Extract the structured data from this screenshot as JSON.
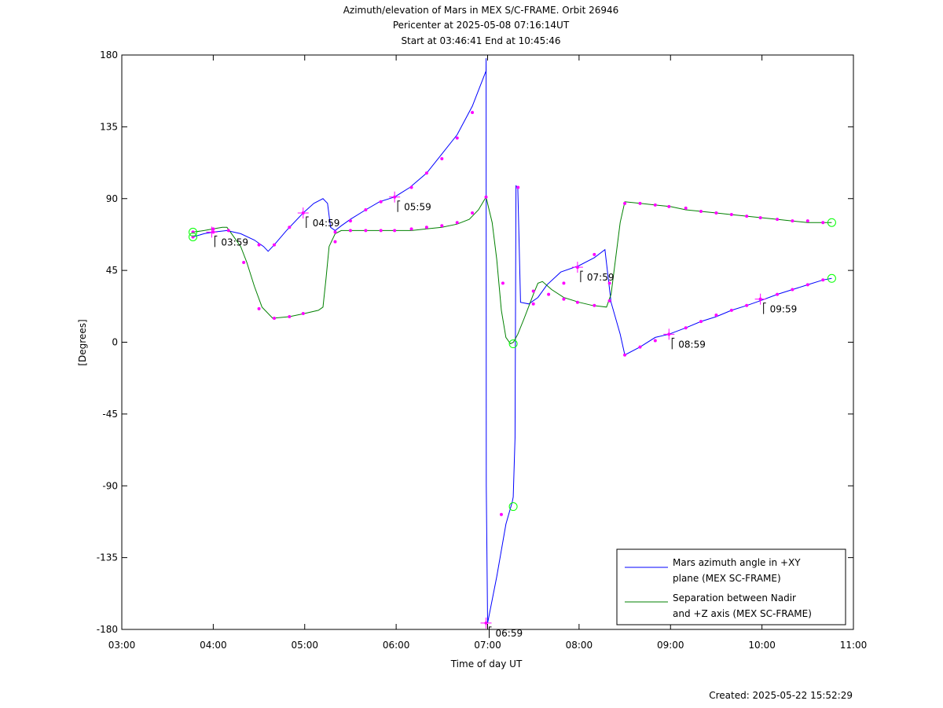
{
  "chart_data": {
    "type": "line",
    "title_lines": [
      "Azimuth/elevation of Mars in MEX S/C-FRAME.  Orbit 26946",
      "Pericenter at 2025-05-08 07:16:14UT",
      "Start at 03:46:41 End at 10:45:46"
    ],
    "xlabel": "Time of day UT",
    "ylabel": "[Degrees]",
    "xlim": [
      3.0,
      11.0
    ],
    "ylim": [
      -180,
      180
    ],
    "xticks": [
      {
        "v": 3,
        "label": "03:00"
      },
      {
        "v": 4,
        "label": "04:00"
      },
      {
        "v": 5,
        "label": "05:00"
      },
      {
        "v": 6,
        "label": "06:00"
      },
      {
        "v": 7,
        "label": "07:00"
      },
      {
        "v": 8,
        "label": "08:00"
      },
      {
        "v": 9,
        "label": "09:00"
      },
      {
        "v": 10,
        "label": "10:00"
      },
      {
        "v": 11,
        "label": "11:00"
      }
    ],
    "yticks": [
      {
        "v": 180,
        "label": "180"
      },
      {
        "v": 135,
        "label": "135"
      },
      {
        "v": 90,
        "label": "90"
      },
      {
        "v": 45,
        "label": "45"
      },
      {
        "v": 0,
        "label": "0"
      },
      {
        "v": -45,
        "label": "-45"
      },
      {
        "v": -90,
        "label": "-90"
      },
      {
        "v": -135,
        "label": "-135"
      },
      {
        "v": -180,
        "label": "-180"
      }
    ],
    "grid": false,
    "legend_position": "bottom-right",
    "series": [
      {
        "name_lines": [
          "Mars azimuth angle in +XY",
          "plane (MEX SC-FRAME)"
        ],
        "color": "#0000ff",
        "x": [
          3.778,
          3.9,
          4.0,
          4.15,
          4.3,
          4.45,
          4.55,
          4.6,
          4.667,
          4.8,
          4.983,
          5.1,
          5.2,
          5.25,
          5.283,
          5.333,
          5.4,
          5.5,
          5.667,
          5.817,
          5.983,
          6.15,
          6.333,
          6.5,
          6.667,
          6.833,
          6.983,
          6.9833,
          6.985,
          7.0,
          7.1,
          7.2,
          7.27,
          7.28,
          7.3,
          7.31,
          7.33,
          7.36,
          7.45,
          7.55,
          7.65,
          7.8,
          8.0,
          8.167,
          8.283,
          8.35,
          8.45,
          8.5,
          8.667,
          8.833,
          8.983,
          9.167,
          9.333,
          9.5,
          9.667,
          9.833,
          9.983,
          10.167,
          10.333,
          10.5,
          10.667,
          10.763
        ],
        "y": [
          66,
          68,
          69,
          70,
          68,
          64,
          60,
          57,
          61,
          70,
          81,
          87,
          90,
          87,
          72,
          70,
          73,
          77,
          83,
          88,
          91,
          97,
          106,
          118,
          130,
          148,
          170,
          178,
          -90,
          -176,
          -147,
          -114,
          -100,
          -97,
          -60,
          98,
          97,
          25,
          24,
          28,
          36,
          44,
          48,
          53,
          58,
          25,
          5,
          -8,
          -3,
          3,
          5,
          9,
          13,
          16,
          20,
          23,
          26,
          30,
          33,
          36,
          39,
          40
        ]
      },
      {
        "name_lines": [
          "Separation between Nadir",
          "and +Z axis (MEX SC-FRAME)"
        ],
        "color": "#008000",
        "x": [
          3.778,
          3.9,
          4.0,
          4.1,
          4.15,
          4.2,
          4.3,
          4.367,
          4.45,
          4.533,
          4.65,
          4.833,
          5.0,
          5.15,
          5.2,
          5.233,
          5.267,
          5.333,
          5.4,
          5.5,
          5.667,
          5.833,
          6.0,
          6.167,
          6.333,
          6.5,
          6.667,
          6.8,
          6.9,
          6.983,
          7.05,
          7.1,
          7.15,
          7.2,
          7.25,
          7.283,
          7.33,
          7.4,
          7.5,
          7.55,
          7.6,
          7.7,
          7.833,
          8.0,
          8.15,
          8.3,
          8.35,
          8.45,
          8.5,
          8.667,
          8.833,
          9.0,
          9.167,
          9.333,
          9.5,
          9.667,
          9.833,
          10.0,
          10.167,
          10.333,
          10.5,
          10.667,
          10.763
        ],
        "y": [
          69,
          70,
          71,
          72,
          72,
          68,
          60,
          50,
          35,
          22,
          15,
          16,
          18,
          20,
          22,
          40,
          60,
          68,
          70,
          70,
          70,
          70,
          70,
          70,
          71,
          72,
          74,
          77,
          83,
          91,
          75,
          52,
          20,
          3,
          -1,
          0,
          5,
          15,
          30,
          37,
          38,
          33,
          28,
          25,
          23,
          22,
          30,
          75,
          88,
          87,
          86,
          85,
          83,
          82,
          81,
          80,
          79,
          78,
          77,
          76,
          75,
          75,
          75
        ]
      }
    ],
    "markers": [
      {
        "x": 3.778,
        "y": 66
      },
      {
        "x": 3.778,
        "y": 69
      },
      {
        "x": 4.0,
        "y": 69
      },
      {
        "x": 4.0,
        "y": 71
      },
      {
        "x": 4.167,
        "y": 70
      },
      {
        "x": 4.333,
        "y": 50
      },
      {
        "x": 4.5,
        "y": 21
      },
      {
        "x": 4.667,
        "y": 15
      },
      {
        "x": 4.5,
        "y": 61
      },
      {
        "x": 4.667,
        "y": 61
      },
      {
        "x": 4.833,
        "y": 16
      },
      {
        "x": 4.833,
        "y": 72
      },
      {
        "x": 4.983,
        "y": 81
      },
      {
        "x": 4.983,
        "y": 18
      },
      {
        "x": 5.333,
        "y": 63
      },
      {
        "x": 5.333,
        "y": 69
      },
      {
        "x": 5.5,
        "y": 76
      },
      {
        "x": 5.5,
        "y": 70
      },
      {
        "x": 5.667,
        "y": 70
      },
      {
        "x": 5.667,
        "y": 83
      },
      {
        "x": 5.833,
        "y": 88
      },
      {
        "x": 5.833,
        "y": 70
      },
      {
        "x": 5.983,
        "y": 91
      },
      {
        "x": 5.983,
        "y": 70
      },
      {
        "x": 6.167,
        "y": 97
      },
      {
        "x": 6.167,
        "y": 71
      },
      {
        "x": 6.333,
        "y": 106
      },
      {
        "x": 6.333,
        "y": 72
      },
      {
        "x": 6.5,
        "y": 115
      },
      {
        "x": 6.5,
        "y": 73
      },
      {
        "x": 6.667,
        "y": 128
      },
      {
        "x": 6.667,
        "y": 75
      },
      {
        "x": 6.833,
        "y": 144
      },
      {
        "x": 6.833,
        "y": 81
      },
      {
        "x": 6.983,
        "y": 91
      },
      {
        "x": 6.983,
        "y": -176
      },
      {
        "x": 7.15,
        "y": -108
      },
      {
        "x": 7.167,
        "y": 37
      },
      {
        "x": 7.333,
        "y": 97
      },
      {
        "x": 7.5,
        "y": 24
      },
      {
        "x": 7.5,
        "y": 32
      },
      {
        "x": 7.667,
        "y": 30
      },
      {
        "x": 7.833,
        "y": 37
      },
      {
        "x": 7.833,
        "y": 27
      },
      {
        "x": 7.983,
        "y": 47
      },
      {
        "x": 7.983,
        "y": 25
      },
      {
        "x": 8.167,
        "y": 55
      },
      {
        "x": 8.167,
        "y": 23
      },
      {
        "x": 8.333,
        "y": 26
      },
      {
        "x": 8.333,
        "y": 37
      },
      {
        "x": 8.5,
        "y": -8
      },
      {
        "x": 8.5,
        "y": 87
      },
      {
        "x": 8.667,
        "y": -3
      },
      {
        "x": 8.667,
        "y": 87
      },
      {
        "x": 8.833,
        "y": 1
      },
      {
        "x": 8.833,
        "y": 86
      },
      {
        "x": 8.983,
        "y": 5
      },
      {
        "x": 8.983,
        "y": 85
      },
      {
        "x": 9.167,
        "y": 9
      },
      {
        "x": 9.167,
        "y": 84
      },
      {
        "x": 9.333,
        "y": 13
      },
      {
        "x": 9.333,
        "y": 82
      },
      {
        "x": 9.5,
        "y": 17
      },
      {
        "x": 9.5,
        "y": 81
      },
      {
        "x": 9.667,
        "y": 20
      },
      {
        "x": 9.667,
        "y": 80
      },
      {
        "x": 9.833,
        "y": 23
      },
      {
        "x": 9.833,
        "y": 79
      },
      {
        "x": 9.983,
        "y": 27
      },
      {
        "x": 9.983,
        "y": 78
      },
      {
        "x": 10.167,
        "y": 30
      },
      {
        "x": 10.167,
        "y": 77
      },
      {
        "x": 10.333,
        "y": 33
      },
      {
        "x": 10.333,
        "y": 76
      },
      {
        "x": 10.5,
        "y": 36
      },
      {
        "x": 10.5,
        "y": 76
      },
      {
        "x": 10.667,
        "y": 39
      },
      {
        "x": 10.667,
        "y": 75
      }
    ],
    "circles": [
      {
        "x": 3.778,
        "y": 66
      },
      {
        "x": 3.778,
        "y": 69
      },
      {
        "x": 7.28,
        "y": -103
      },
      {
        "x": 7.28,
        "y": -1
      },
      {
        "x": 10.763,
        "y": 40
      },
      {
        "x": 10.763,
        "y": 75
      }
    ],
    "time_labels": [
      {
        "x": 3.983,
        "y": 69,
        "label": "03:59"
      },
      {
        "x": 4.983,
        "y": 81,
        "label": "04:59"
      },
      {
        "x": 5.983,
        "y": 91,
        "label": "05:59"
      },
      {
        "x": 6.983,
        "y": -176,
        "label": "06:59"
      },
      {
        "x": 7.983,
        "y": 47,
        "label": "07:59"
      },
      {
        "x": 8.983,
        "y": 5,
        "label": "08:59"
      },
      {
        "x": 9.983,
        "y": 27,
        "label": "09:59"
      }
    ],
    "marker_color": "#ff00ff",
    "circle_color": "#00ff00"
  },
  "footer": {
    "created": "Created: 2025-05-22 15:52:29"
  }
}
